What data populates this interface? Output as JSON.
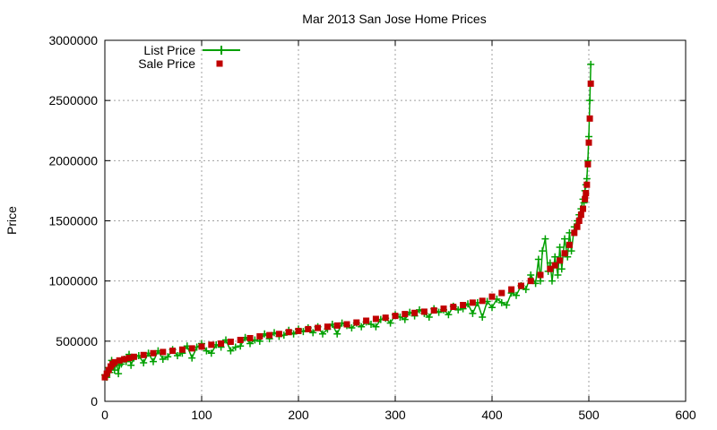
{
  "chart_data": {
    "type": "scatter",
    "title": "Mar 2013 San Jose Home Prices",
    "xlabel": "",
    "ylabel": "Price",
    "xlim": [
      0,
      600
    ],
    "ylim": [
      0,
      3000000
    ],
    "xticks": [
      0,
      100,
      200,
      300,
      400,
      500,
      600
    ],
    "xtick_labels": [
      "0",
      "100",
      "200",
      "300",
      "400",
      "500",
      "600"
    ],
    "yticks": [
      0,
      500000,
      1000000,
      1500000,
      2000000,
      2500000,
      3000000
    ],
    "ytick_labels": [
      "0",
      "500000",
      "1000000",
      "1500000",
      "2000000",
      "2500000",
      "3000000"
    ],
    "grid": true,
    "legend_position": "top-left",
    "legend": [
      {
        "name": "List Price",
        "style": "line with plus markers",
        "color": "#00a000"
      },
      {
        "name": "Sale Price",
        "style": "square markers",
        "color": "#c00000"
      }
    ],
    "series": [
      {
        "name": "Sale Price",
        "color": "#c00000",
        "marker": "square",
        "x": [
          0,
          2,
          4,
          6,
          8,
          10,
          15,
          20,
          25,
          30,
          40,
          50,
          60,
          70,
          80,
          90,
          100,
          110,
          120,
          130,
          140,
          150,
          160,
          170,
          180,
          190,
          200,
          210,
          220,
          230,
          240,
          250,
          260,
          270,
          280,
          290,
          300,
          310,
          320,
          330,
          340,
          350,
          360,
          370,
          380,
          390,
          400,
          410,
          420,
          430,
          440,
          450,
          460,
          465,
          470,
          475,
          480,
          485,
          488,
          490,
          492,
          494,
          496,
          497,
          498,
          499,
          500,
          501,
          502
        ],
        "values": [
          200000,
          230000,
          260000,
          290000,
          310000,
          325000,
          340000,
          350000,
          360000,
          370000,
          385000,
          400000,
          410000,
          420000,
          430000,
          440000,
          455000,
          470000,
          480000,
          495000,
          510000,
          525000,
          540000,
          550000,
          560000,
          575000,
          585000,
          600000,
          610000,
          620000,
          630000,
          640000,
          655000,
          670000,
          685000,
          695000,
          710000,
          725000,
          735000,
          745000,
          755000,
          770000,
          785000,
          800000,
          820000,
          835000,
          870000,
          900000,
          930000,
          960000,
          1000000,
          1050000,
          1100000,
          1130000,
          1170000,
          1230000,
          1300000,
          1400000,
          1450000,
          1500000,
          1550000,
          1600000,
          1680000,
          1730000,
          1800000,
          1970000,
          2150000,
          2350000,
          2640000
        ]
      },
      {
        "name": "List Price",
        "color": "#00a000",
        "marker": "plus",
        "x": [
          0,
          2,
          4,
          5,
          7,
          8,
          10,
          12,
          14,
          15,
          17,
          20,
          22,
          25,
          27,
          30,
          35,
          40,
          45,
          50,
          55,
          60,
          65,
          70,
          75,
          80,
          85,
          90,
          95,
          100,
          105,
          110,
          115,
          120,
          125,
          130,
          135,
          140,
          145,
          150,
          155,
          160,
          165,
          170,
          175,
          180,
          185,
          190,
          195,
          200,
          205,
          210,
          215,
          220,
          225,
          230,
          235,
          240,
          245,
          250,
          255,
          260,
          265,
          270,
          275,
          280,
          285,
          290,
          295,
          300,
          305,
          310,
          315,
          320,
          325,
          330,
          335,
          340,
          345,
          350,
          355,
          360,
          365,
          370,
          375,
          380,
          385,
          390,
          395,
          400,
          405,
          410,
          415,
          420,
          425,
          430,
          435,
          440,
          445,
          448,
          450,
          452,
          455,
          458,
          460,
          462,
          465,
          468,
          470,
          472,
          475,
          478,
          480,
          482,
          485,
          488,
          490,
          492,
          494,
          495,
          496,
          497,
          498,
          499,
          500,
          501,
          502
        ],
        "values": [
          220000,
          200000,
          280000,
          240000,
          340000,
          290000,
          260000,
          320000,
          230000,
          300000,
          310000,
          350000,
          330000,
          390000,
          300000,
          360000,
          380000,
          320000,
          400000,
          330000,
          420000,
          350000,
          370000,
          430000,
          380000,
          400000,
          460000,
          360000,
          450000,
          480000,
          420000,
          400000,
          470000,
          450000,
          510000,
          420000,
          450000,
          460000,
          530000,
          480000,
          510000,
          500000,
          560000,
          520000,
          570000,
          540000,
          550000,
          590000,
          560000,
          600000,
          580000,
          610000,
          570000,
          620000,
          560000,
          600000,
          640000,
          560000,
          650000,
          630000,
          610000,
          650000,
          620000,
          660000,
          640000,
          620000,
          680000,
          690000,
          650000,
          720000,
          700000,
          680000,
          740000,
          710000,
          760000,
          730000,
          700000,
          770000,
          740000,
          760000,
          720000,
          790000,
          760000,
          770000,
          810000,
          730000,
          820000,
          700000,
          830000,
          780000,
          850000,
          820000,
          800000,
          900000,
          880000,
          960000,
          930000,
          1050000,
          980000,
          1180000,
          1000000,
          1250000,
          1350000,
          1080000,
          1150000,
          1000000,
          1200000,
          1050000,
          1280000,
          1100000,
          1350000,
          1200000,
          1400000,
          1250000,
          1450000,
          1500000,
          1550000,
          1600000,
          1680000,
          1650000,
          1750000,
          1800000,
          1850000,
          2000000,
          2200000,
          2500000,
          2800000
        ]
      }
    ]
  }
}
